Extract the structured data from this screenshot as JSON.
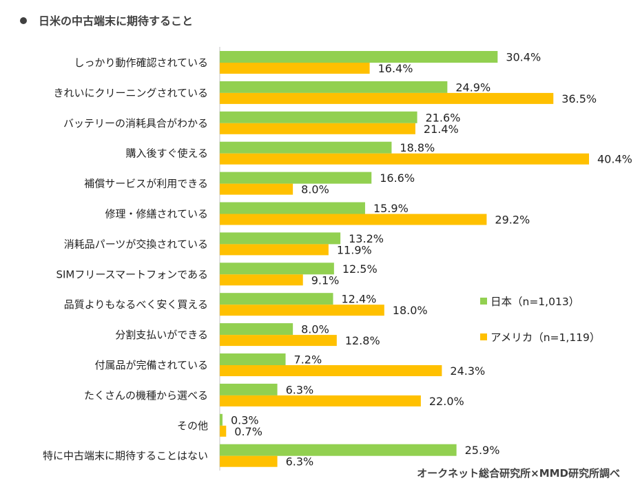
{
  "chart_data": {
    "type": "bar",
    "orientation": "horizontal",
    "title": "日米の中古端末に期待すること",
    "source": "オークネット総合研究所×MMD研究所調べ",
    "categories": [
      "しっかり動作確認されている",
      "きれいにクリーニングされている",
      "バッテリーの消耗具合がわかる",
      "購入後すぐ使える",
      "補償サービスが利用できる",
      "修理・修繕されている",
      "消耗品パーツが交換されている",
      "SIMフリースマートフォンである",
      "品質よりもなるべく安く買える",
      "分割支払いができる",
      "付属品が完備されている",
      "たくさんの機種から選べる",
      "その他",
      "特に中古端末に期待することはない"
    ],
    "series": [
      {
        "name": "日本（n=1,013）",
        "color": "#92d050",
        "values": [
          30.4,
          24.9,
          21.6,
          18.8,
          16.6,
          15.9,
          13.2,
          12.5,
          12.4,
          8.0,
          7.2,
          6.3,
          0.3,
          25.9
        ]
      },
      {
        "name": "アメリカ（n=1,119）",
        "color": "#ffc000",
        "values": [
          16.4,
          36.5,
          21.4,
          40.4,
          8.0,
          29.2,
          11.9,
          9.1,
          18.0,
          12.8,
          24.3,
          22.0,
          0.7,
          6.3
        ]
      }
    ],
    "unit": "%",
    "xlim": [
      0,
      40.4
    ],
    "grid": false,
    "legend_placement": "right"
  }
}
